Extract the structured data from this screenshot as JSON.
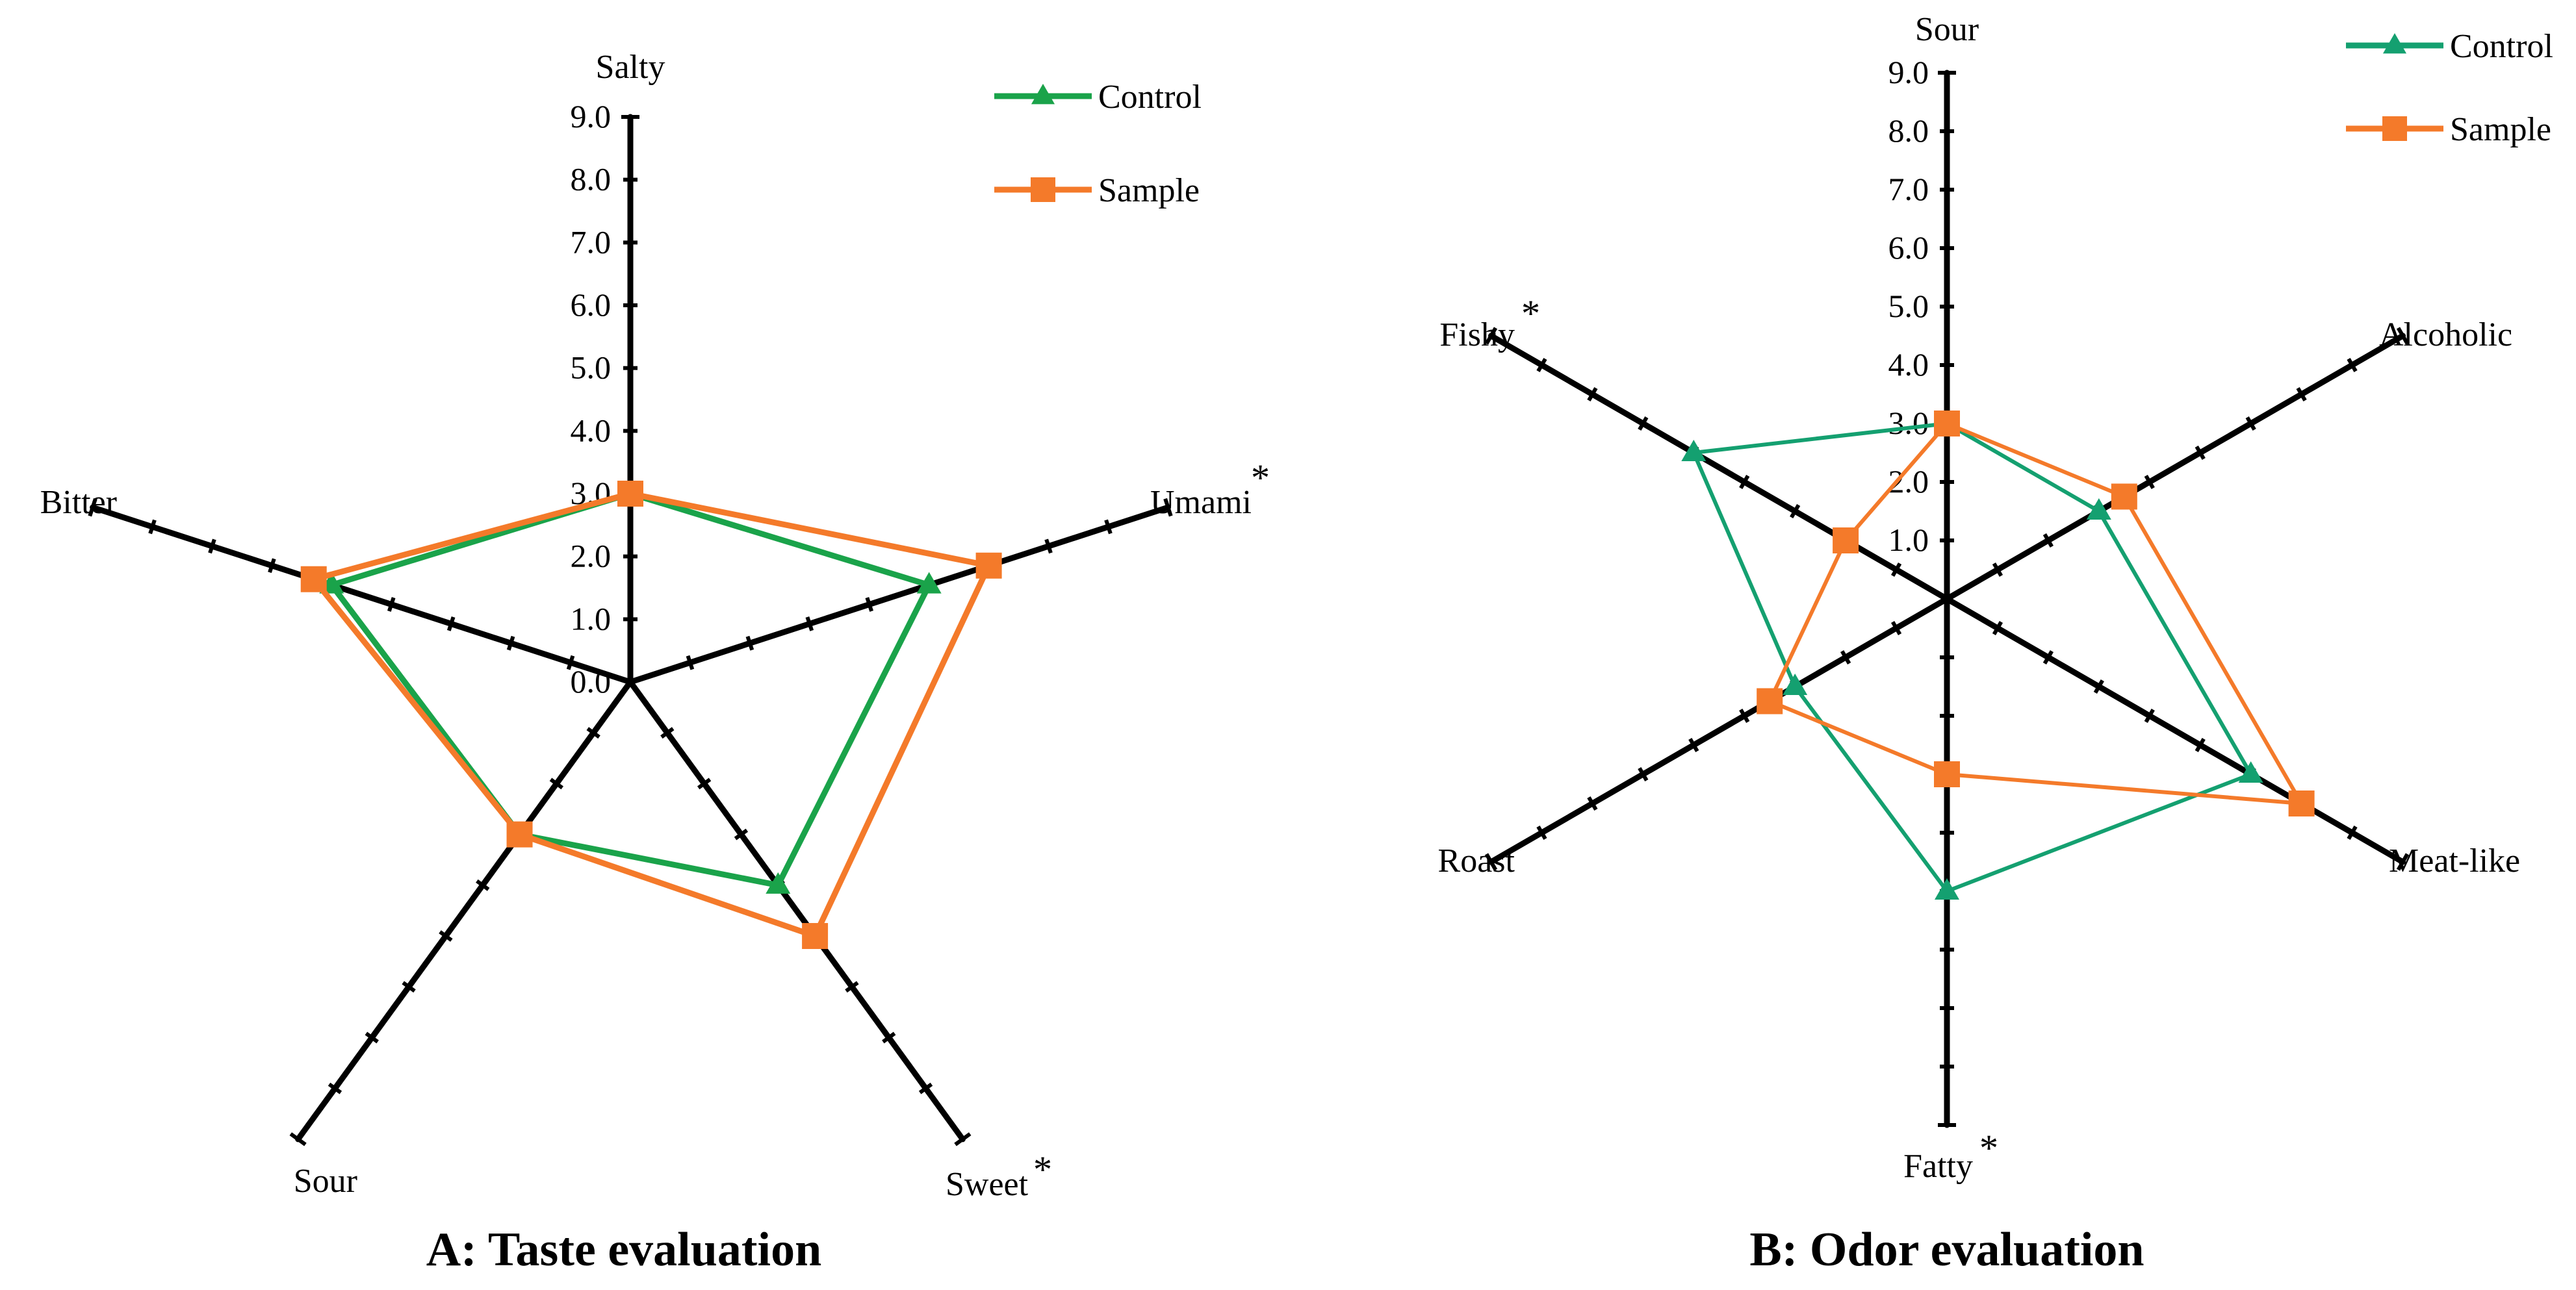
{
  "chart_data": [
    {
      "type": "radar",
      "title": "A: Taste evaluation",
      "axes": [
        {
          "label": "Salty",
          "star": ""
        },
        {
          "label": "Umami",
          "star": "*"
        },
        {
          "label": "Sweet",
          "star": "*"
        },
        {
          "label": "Sour",
          "star": ""
        },
        {
          "label": "Bitter",
          "star": ""
        }
      ],
      "tick_labels": [
        "0.0",
        "1.0",
        "2.0",
        "3.0",
        "4.0",
        "5.0",
        "6.0",
        "7.0",
        "8.0",
        "9.0"
      ],
      "rlim": [
        0,
        9
      ],
      "series": [
        {
          "name": "Control",
          "color": "#1aa34a",
          "marker": "triangle",
          "values": [
            3.0,
            5.0,
            4.0,
            3.0,
            5.0
          ]
        },
        {
          "name": "Sample",
          "color": "#f47a2a",
          "marker": "square",
          "values": [
            3.0,
            6.0,
            5.0,
            3.0,
            5.3
          ]
        }
      ],
      "legend": "top-right"
    },
    {
      "type": "radar",
      "title": "B: Odor evaluation",
      "axes": [
        {
          "label": "Sour",
          "star": ""
        },
        {
          "label": "Alcoholic",
          "star": ""
        },
        {
          "label": "Meat-like",
          "star": ""
        },
        {
          "label": "Fatty",
          "star": "*"
        },
        {
          "label": "Roast",
          "star": ""
        },
        {
          "label": "Fishy",
          "star": "*"
        }
      ],
      "tick_labels": [
        "1.0",
        "2.0",
        "3.0",
        "4.0",
        "5.0",
        "6.0",
        "7.0",
        "8.0",
        "9.0"
      ],
      "rlim": [
        0,
        9
      ],
      "series": [
        {
          "name": "Control",
          "color": "#14a070",
          "marker": "triangle",
          "values": [
            3.0,
            3.0,
            6.0,
            5.0,
            3.0,
            5.0
          ]
        },
        {
          "name": "Sample",
          "color": "#f47a2a",
          "marker": "square",
          "values": [
            3.0,
            3.5,
            7.0,
            3.0,
            3.5,
            2.0
          ]
        }
      ],
      "legend": "top-right"
    }
  ]
}
